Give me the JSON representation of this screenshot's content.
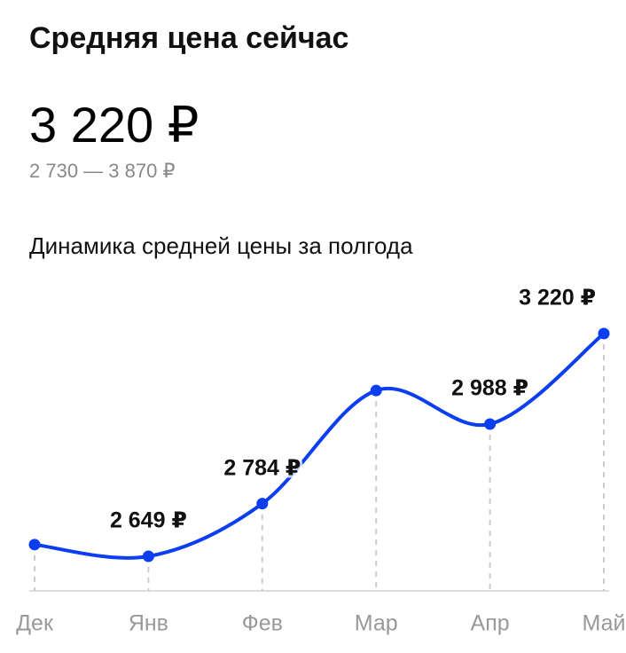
{
  "header": {
    "title": "Средняя цена сейчас",
    "price": "3 220 ₽",
    "range": "2 730 — 3 870 ₽"
  },
  "chart_data": {
    "type": "line",
    "title": "Динамика средней цены за полгода",
    "categories": [
      "Дек",
      "Янв",
      "Фев",
      "Мар",
      "Апр",
      "Май"
    ],
    "series": [
      {
        "name": null,
        "color": "#0a3ef0",
        "values": [
          2679,
          2649,
          2784,
          3074,
          2988,
          3220
        ],
        "value_labels": [
          null,
          "2 649 ₽",
          "2 784 ₽",
          null,
          "2 988 ₽",
          "3 220 ₽"
        ]
      }
    ]
  }
}
